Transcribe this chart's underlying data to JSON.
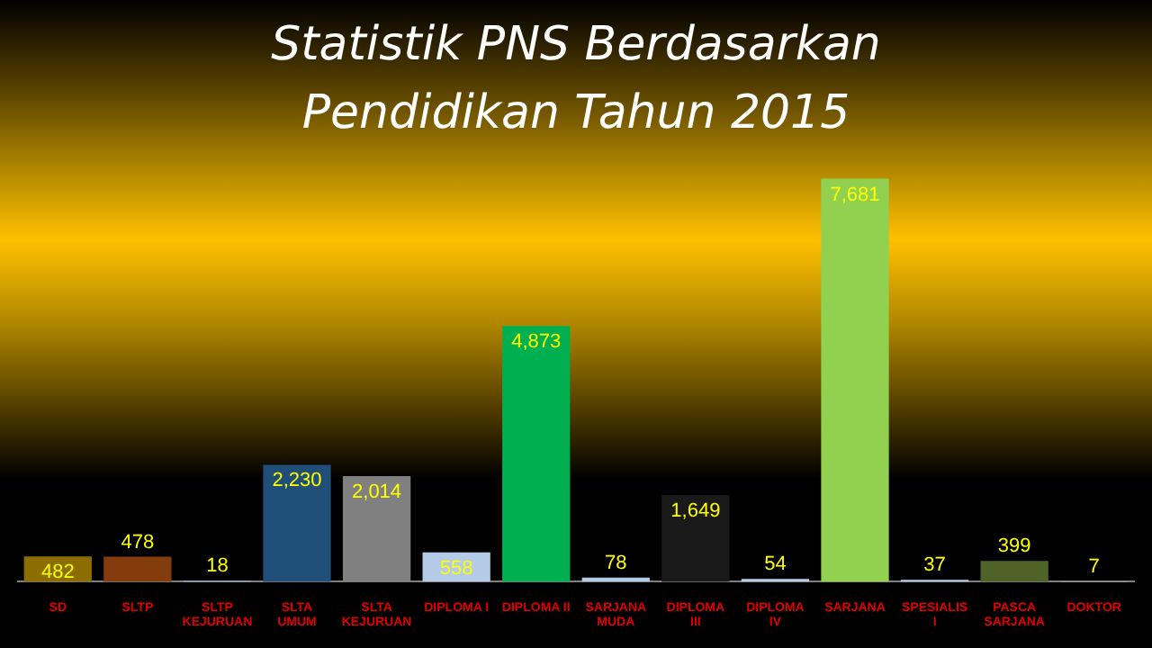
{
  "chart_data": {
    "type": "bar",
    "title": "Statistik PNS Berdasarkan Pendidikan Tahun 2015",
    "categories": [
      "SD",
      "SLTP",
      "SLTP KEJURUAN",
      "SLTA UMUM",
      "SLTA KEJURUAN",
      "DIPLOMA I",
      "DIPLOMA II",
      "SARJANA MUDA",
      "DIPLOMA III",
      "DIPLOMA IV",
      "SARJANA",
      "SPESIALIS I",
      "PASCA SARJANA",
      "DOKTOR"
    ],
    "values": [
      482,
      478,
      18,
      2230,
      2014,
      558,
      4873,
      78,
      1649,
      54,
      7681,
      37,
      399,
      7
    ],
    "value_labels": [
      "482",
      "478",
      "18",
      "2,230",
      "2,014",
      "558",
      "4,873",
      "78",
      "1,649",
      "54",
      "7,681",
      "37",
      "399",
      "7"
    ],
    "colors": [
      "#8b6d00",
      "#843c0c",
      "#8eb4e3",
      "#1f4e79",
      "#808080",
      "#b4cbe8",
      "#00b050",
      "#b4cbe8",
      "#1a1a1a",
      "#b4cbe8",
      "#92d050",
      "#b4cbe8",
      "#4f6228",
      "#b4cbe8"
    ],
    "grid": false,
    "legend": false
  }
}
